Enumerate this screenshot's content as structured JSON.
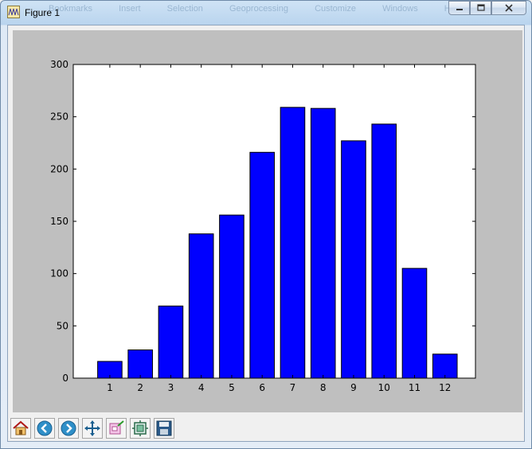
{
  "window": {
    "title": "Figure 1"
  },
  "background_menu": [
    "Bookmarks",
    "Insert",
    "Selection",
    "Geoprocessing",
    "Customize",
    "Windows",
    "Help"
  ],
  "caption_buttons": [
    {
      "name": "minimize-button",
      "icon": "minimize-icon"
    },
    {
      "name": "maximize-button",
      "icon": "maximize-icon"
    },
    {
      "name": "close-button",
      "icon": "close-icon"
    }
  ],
  "toolbar": [
    {
      "name": "home-button",
      "icon": "home-icon"
    },
    {
      "name": "back-button",
      "icon": "back-arrow-icon"
    },
    {
      "name": "forward-button",
      "icon": "forward-arrow-icon"
    },
    {
      "name": "pan-button",
      "icon": "pan-move-icon"
    },
    {
      "name": "zoom-button",
      "icon": "zoom-rect-icon"
    },
    {
      "name": "subplots-button",
      "icon": "subplots-config-icon"
    },
    {
      "name": "save-button",
      "icon": "save-disk-icon"
    }
  ],
  "colors": {
    "bar_fill": "#0000ff",
    "bar_edge": "#000000",
    "figure_bg": "#bfbfbf",
    "axes_bg": "#ffffff"
  },
  "chart_data": {
    "type": "bar",
    "categories": [
      "1",
      "2",
      "3",
      "4",
      "5",
      "6",
      "7",
      "8",
      "9",
      "10",
      "11",
      "12"
    ],
    "values": [
      16,
      27,
      69,
      138,
      156,
      216,
      259,
      258,
      227,
      243,
      105,
      23
    ],
    "xlim": [
      -0.2,
      13
    ],
    "ylim": [
      0,
      300
    ],
    "yticks": [
      0,
      50,
      100,
      150,
      200,
      250,
      300
    ],
    "ytick_labels": [
      "0",
      "50",
      "100",
      "150",
      "200",
      "250",
      "300"
    ],
    "title": "",
    "xlabel": "",
    "ylabel": "",
    "grid": false,
    "legend": null
  }
}
